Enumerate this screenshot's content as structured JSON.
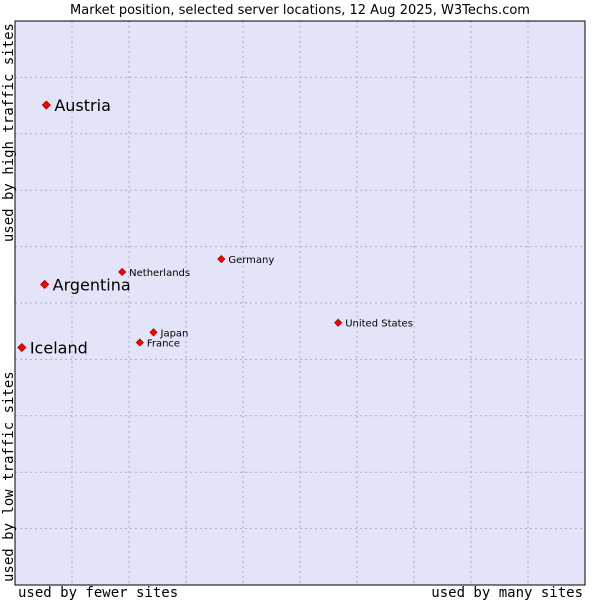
{
  "chart_data": {
    "type": "scatter",
    "title": "Market position, selected server locations, 12 Aug 2025, W3Techs.com",
    "xlabel_left": "used by fewer sites",
    "xlabel_right": "used by many sites",
    "ylabel_top": "used by high traffic sites",
    "ylabel_bottom": "used by low traffic sites",
    "xlim": [
      0,
      100
    ],
    "ylim": [
      0,
      100
    ],
    "grid": true,
    "colors": {
      "plot_background": "#e4e4f8",
      "grid": "#a9a9c9",
      "frame": "#000000",
      "marker": "#ff0000",
      "marker_edge": "#990000"
    },
    "points": [
      {
        "label": "Austria",
        "x": 5.5,
        "y": 85.1,
        "highlight": true
      },
      {
        "label": "Argentina",
        "x": 5.2,
        "y": 53.3,
        "highlight": true
      },
      {
        "label": "Iceland",
        "x": 1.2,
        "y": 42.1,
        "highlight": true
      },
      {
        "label": "Netherlands",
        "x": 18.8,
        "y": 55.5,
        "highlight": false
      },
      {
        "label": "Germany",
        "x": 36.2,
        "y": 57.8,
        "highlight": false
      },
      {
        "label": "Japan",
        "x": 24.3,
        "y": 44.8,
        "highlight": false
      },
      {
        "label": "France",
        "x": 21.9,
        "y": 43.0,
        "highlight": false
      },
      {
        "label": "United States",
        "x": 56.7,
        "y": 46.5,
        "highlight": false
      }
    ]
  }
}
